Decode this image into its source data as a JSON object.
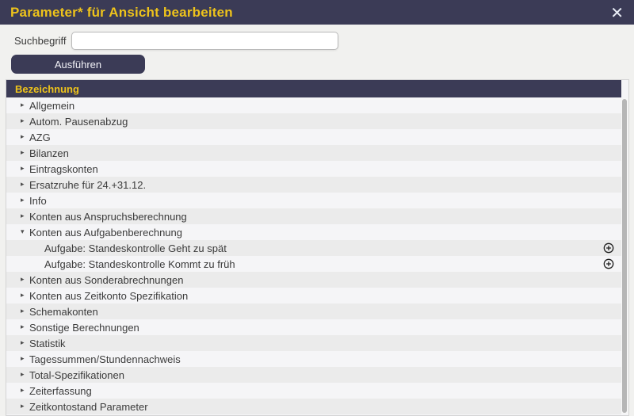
{
  "dialog": {
    "title": "Parameter* für Ansicht bearbeiten",
    "close_glyph": "✕"
  },
  "search": {
    "label": "Suchbegriff",
    "value": "",
    "placeholder": ""
  },
  "actions": {
    "execute_label": "Ausführen"
  },
  "table": {
    "header": "Bezeichnung",
    "rows": [
      {
        "label": "Allgemein",
        "level": 0,
        "expanded": false,
        "has_plus": false
      },
      {
        "label": "Autom. Pausenabzug",
        "level": 0,
        "expanded": false,
        "has_plus": false
      },
      {
        "label": "AZG",
        "level": 0,
        "expanded": false,
        "has_plus": false
      },
      {
        "label": "Bilanzen",
        "level": 0,
        "expanded": false,
        "has_plus": false
      },
      {
        "label": "Eintragskonten",
        "level": 0,
        "expanded": false,
        "has_plus": false
      },
      {
        "label": "Ersatzruhe für 24.+31.12.",
        "level": 0,
        "expanded": false,
        "has_plus": false
      },
      {
        "label": "Info",
        "level": 0,
        "expanded": false,
        "has_plus": false
      },
      {
        "label": "Konten aus Anspruchsberechnung",
        "level": 0,
        "expanded": false,
        "has_plus": false
      },
      {
        "label": "Konten aus Aufgabenberechnung",
        "level": 0,
        "expanded": true,
        "has_plus": false
      },
      {
        "label": "Aufgabe: Standeskontrolle Geht zu spät",
        "level": 1,
        "expanded": false,
        "has_plus": true
      },
      {
        "label": "Aufgabe: Standeskontrolle Kommt zu früh",
        "level": 1,
        "expanded": false,
        "has_plus": true
      },
      {
        "label": "Konten aus Sonderabrechnungen",
        "level": 0,
        "expanded": false,
        "has_plus": false
      },
      {
        "label": "Konten aus Zeitkonto Spezifikation",
        "level": 0,
        "expanded": false,
        "has_plus": false
      },
      {
        "label": "Schemakonten",
        "level": 0,
        "expanded": false,
        "has_plus": false
      },
      {
        "label": "Sonstige Berechnungen",
        "level": 0,
        "expanded": false,
        "has_plus": false
      },
      {
        "label": "Statistik",
        "level": 0,
        "expanded": false,
        "has_plus": false
      },
      {
        "label": "Tagessummen/Stundennachweis",
        "level": 0,
        "expanded": false,
        "has_plus": false
      },
      {
        "label": "Total-Spezifikationen",
        "level": 0,
        "expanded": false,
        "has_plus": false
      },
      {
        "label": "Zeiterfassung",
        "level": 0,
        "expanded": false,
        "has_plus": false
      },
      {
        "label": "Zeitkontostand Parameter",
        "level": 0,
        "expanded": false,
        "has_plus": false
      }
    ]
  },
  "icons": {
    "collapsed_glyph": "▸",
    "expanded_glyph": "▾"
  },
  "colors": {
    "navy": "#3b3b56",
    "yellow": "#eec31b",
    "row_light": "#f5f5f7",
    "row_dark": "#ebebeb",
    "body_bg": "#f1f1ef",
    "text": "#3b3b3b",
    "scroll_thumb": "#b6b6b6"
  }
}
